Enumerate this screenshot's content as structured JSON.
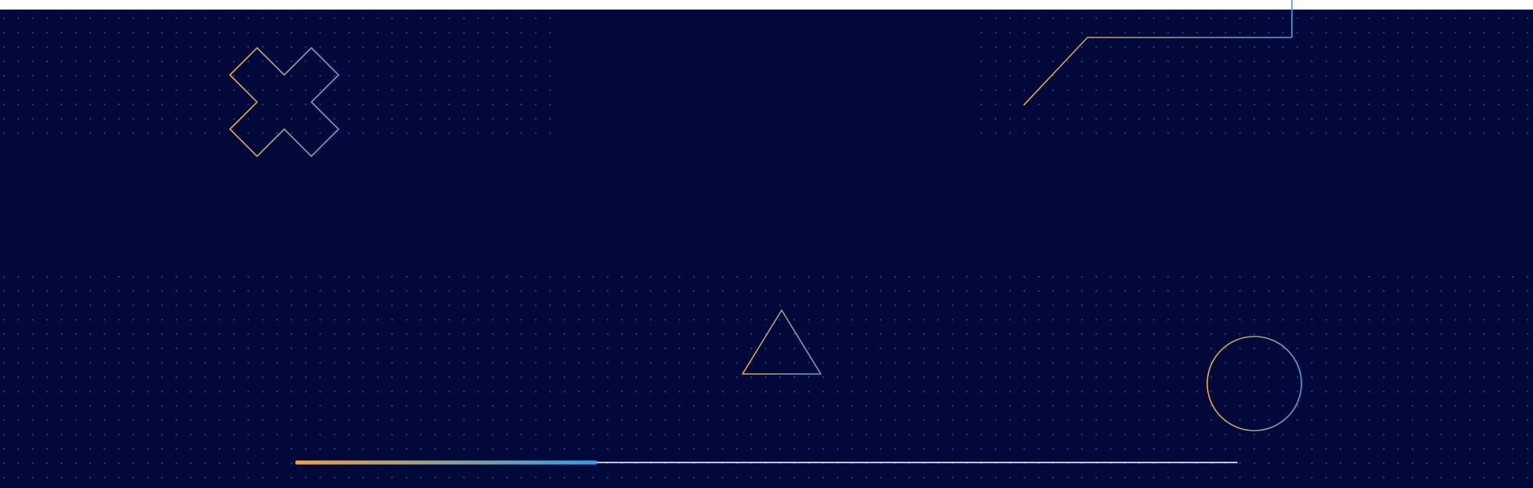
{
  "colors": {
    "background": "#01093a",
    "top_strip": "#ffffff",
    "dots": "#8a93b8",
    "accent_orange": "#f2a33a",
    "accent_blue": "#4a9fd8",
    "line_white": "#ffffff"
  },
  "shapes": {
    "cross": {
      "icon": "cross-outline-icon"
    },
    "triangle": {
      "icon": "triangle-outline-icon"
    },
    "circle": {
      "icon": "circle-outline-icon"
    },
    "bracket_line": {
      "icon": "angled-line-icon"
    }
  },
  "progress": {
    "fraction": 0.32
  }
}
